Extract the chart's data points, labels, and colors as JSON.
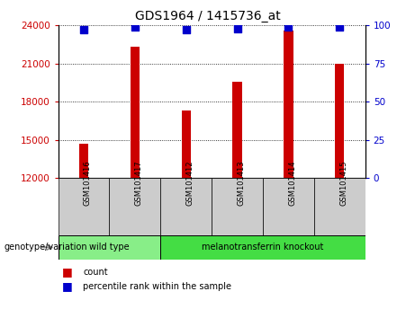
{
  "title": "GDS1964 / 1415736_at",
  "samples": [
    "GSM101416",
    "GSM101417",
    "GSM101412",
    "GSM101413",
    "GSM101414",
    "GSM101415"
  ],
  "counts": [
    14700,
    22300,
    17300,
    19600,
    23600,
    21000
  ],
  "percentile_ranks": [
    97,
    99,
    97,
    98,
    99,
    99
  ],
  "ylim_left": [
    12000,
    24000
  ],
  "ylim_right": [
    0,
    100
  ],
  "yticks_left": [
    12000,
    15000,
    18000,
    21000,
    24000
  ],
  "yticks_right": [
    0,
    25,
    50,
    75,
    100
  ],
  "bar_color": "#cc0000",
  "dot_color": "#0000cc",
  "groups": [
    {
      "label": "wild type",
      "indices": [
        0,
        1
      ],
      "color": "#88ee88"
    },
    {
      "label": "melanotransferrin knockout",
      "indices": [
        2,
        3,
        4,
        5
      ],
      "color": "#44dd44"
    }
  ],
  "group_label": "genotype/variation",
  "legend_count_label": "count",
  "legend_pct_label": "percentile rank within the sample",
  "bar_color_legend": "#cc0000",
  "dot_color_legend": "#0000cc",
  "sample_box_color": "#cccccc",
  "bar_width": 0.18,
  "dot_size": 30,
  "grid_linestyle": "dotted",
  "left_tick_color": "#cc0000",
  "right_tick_color": "#0000cc"
}
